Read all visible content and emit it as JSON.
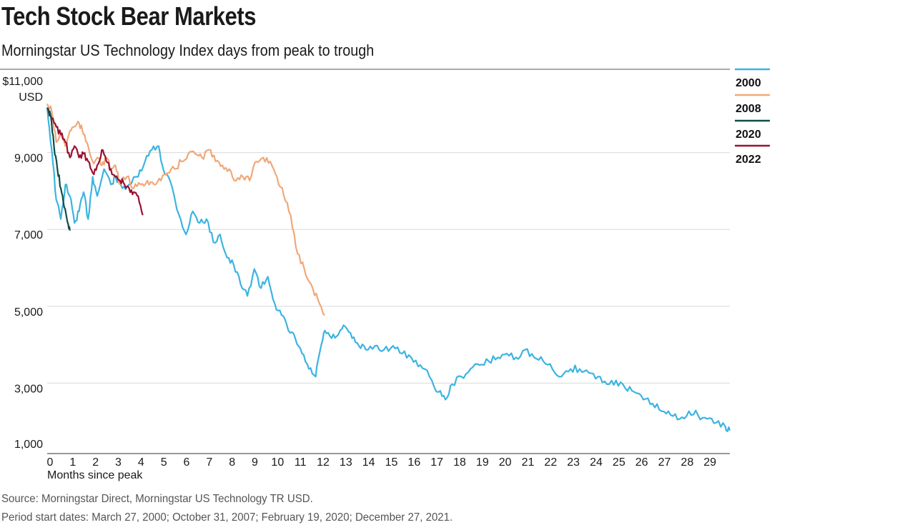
{
  "header": {
    "title": "Tech Stock Bear Markets",
    "subtitle": "Morningstar US Technology Index days from peak to trough"
  },
  "footer": {
    "source": "Source: Morningstar Direct, Morningstar US Technology TR USD.",
    "period": "Period start dates: March 27, 2000; October 31, 2007; February 19, 2020; December 27, 2021."
  },
  "chart_data": {
    "type": "line",
    "title": "Tech Stock Bear Markets",
    "subtitle": "Morningstar US Technology Index days from peak to trough",
    "xlabel": "Months since peak",
    "ylabel": "USD",
    "xlim": [
      0,
      30
    ],
    "ylim": [
      1000,
      11000
    ],
    "y_ticks": [
      {
        "value": 11000,
        "label": "$11,000"
      },
      {
        "value": 9000,
        "label": "9,000"
      },
      {
        "value": 7000,
        "label": "7,000"
      },
      {
        "value": 5000,
        "label": "5,000"
      },
      {
        "value": 3000,
        "label": "3,000"
      },
      {
        "value": 1000,
        "label": "1,000"
      }
    ],
    "y_unit_label": "USD",
    "x_ticks": [
      0,
      1,
      2,
      3,
      4,
      5,
      6,
      7,
      8,
      9,
      10,
      11,
      12,
      13,
      14,
      15,
      16,
      17,
      18,
      19,
      20,
      21,
      22,
      23,
      24,
      25,
      26,
      27,
      28,
      29
    ],
    "grid": "horizontal",
    "legend_position": "right",
    "series": [
      {
        "name": "2000",
        "color": "#3cb4e0",
        "x": [
          0,
          0.2,
          0.4,
          0.6,
          0.8,
          1,
          1.2,
          1.4,
          1.6,
          1.8,
          2,
          2.2,
          2.5,
          2.8,
          3,
          3.3,
          3.6,
          4,
          4.3,
          4.6,
          4.9,
          5.1,
          5.4,
          5.8,
          6.1,
          6.4,
          6.7,
          7,
          7.3,
          7.6,
          7.9,
          8.2,
          8.5,
          8.8,
          9.1,
          9.4,
          9.7,
          10,
          10.3,
          10.6,
          10.9,
          11.2,
          11.5,
          11.8,
          12,
          12.2,
          12.5,
          12.8,
          13.1,
          13.4,
          13.7,
          14,
          14.4,
          14.8,
          15.2,
          15.6,
          16,
          16.4,
          16.8,
          17.2,
          17.5,
          17.8,
          18.2,
          18.6,
          19,
          19.4,
          19.8,
          20.2,
          20.6,
          21,
          21.4,
          21.8,
          22.2,
          22.6,
          23,
          23.4,
          23.8,
          24.2,
          24.6,
          25,
          25.4,
          25.8,
          26.2,
          26.6,
          27,
          27.4,
          27.8,
          28.2,
          28.6,
          29,
          29.4,
          29.8,
          30
        ],
        "values": [
          10300,
          9200,
          7900,
          7400,
          8300,
          8000,
          7300,
          7600,
          8100,
          7400,
          8500,
          8000,
          8700,
          8300,
          8500,
          8200,
          8300,
          8500,
          8900,
          9200,
          9300,
          8700,
          8400,
          7500,
          7000,
          7600,
          7300,
          7400,
          6800,
          7000,
          6400,
          6200,
          5700,
          5400,
          6100,
          5600,
          5900,
          5200,
          4900,
          4500,
          4300,
          3900,
          3500,
          3300,
          4000,
          4500,
          4300,
          4400,
          4600,
          4300,
          4100,
          4000,
          4100,
          4000,
          4100,
          3900,
          3800,
          3600,
          3300,
          2900,
          2700,
          3100,
          3300,
          3500,
          3600,
          3700,
          3800,
          3900,
          3800,
          4000,
          3800,
          3700,
          3500,
          3300,
          3500,
          3500,
          3400,
          3300,
          3100,
          3200,
          3000,
          2900,
          2700,
          2600,
          2400,
          2300,
          2200,
          2400,
          2300,
          2200,
          2100,
          2000,
          1900
        ]
      },
      {
        "name": "2008",
        "color": "#f0a878",
        "x": [
          0,
          0.2,
          0.4,
          0.6,
          0.8,
          1,
          1.2,
          1.4,
          1.6,
          1.8,
          2,
          2.2,
          2.4,
          2.6,
          2.8,
          3,
          3.2,
          3.5,
          3.8,
          4.1,
          4.4,
          4.7,
          5,
          5.3,
          5.6,
          5.9,
          6.2,
          6.5,
          6.8,
          7.1,
          7.4,
          7.7,
          8,
          8.3,
          8.6,
          8.9,
          9.2,
          9.5,
          9.8,
          10.1,
          10.4,
          10.7,
          11,
          11.3,
          11.6,
          11.9,
          12.2
        ],
        "values": [
          10400,
          10200,
          9400,
          9600,
          9300,
          9700,
          9800,
          9900,
          9600,
          9300,
          8900,
          9000,
          8800,
          9000,
          8700,
          8800,
          8300,
          8500,
          8200,
          8300,
          8400,
          8300,
          8400,
          8600,
          8700,
          8900,
          9100,
          9100,
          9000,
          9200,
          8900,
          8800,
          8700,
          8400,
          8500,
          8400,
          8900,
          9000,
          8900,
          8500,
          8000,
          7500,
          6500,
          6100,
          5700,
          5300,
          4900
        ]
      },
      {
        "name": "2020",
        "color": "#0d4d4a",
        "x": [
          0,
          0.15,
          0.3,
          0.45,
          0.6,
          0.75,
          0.9,
          1
        ],
        "values": [
          10300,
          10100,
          9300,
          8700,
          8200,
          7700,
          7300,
          7100
        ]
      },
      {
        "name": "2022",
        "color": "#9b1030",
        "x": [
          0,
          0.2,
          0.4,
          0.6,
          0.8,
          1,
          1.2,
          1.4,
          1.6,
          1.8,
          2,
          2.2,
          2.4,
          2.6,
          2.8,
          3,
          3.2,
          3.4,
          3.6,
          3.8,
          4,
          4.2
        ],
        "values": [
          10300,
          10000,
          9800,
          9600,
          9400,
          9000,
          9300,
          9000,
          9100,
          8900,
          8600,
          8800,
          9200,
          8900,
          8700,
          8500,
          8400,
          8300,
          8200,
          8100,
          8000,
          7500
        ]
      }
    ]
  }
}
